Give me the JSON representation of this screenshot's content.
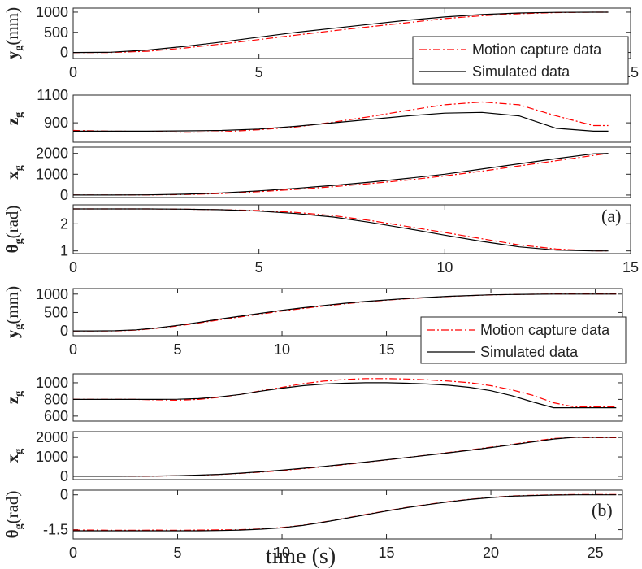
{
  "chart_data": [
    {
      "type": "line",
      "ylabel": {
        "symbol": "y",
        "subscript": "g",
        "unit": "(mm)"
      },
      "x": [
        0,
        1,
        2,
        3,
        4,
        5,
        6,
        7,
        8,
        9,
        10,
        11,
        12,
        13,
        14,
        14.4
      ],
      "xlim": [
        0,
        15
      ],
      "xticks": [
        0,
        5,
        10,
        15
      ],
      "ylim": [
        -150,
        1100
      ],
      "yticks": [
        0,
        500,
        1000
      ],
      "legend": "lower right",
      "series": [
        {
          "name": "Motion capture data",
          "color": "#ff0000",
          "style": "dashdot",
          "values": [
            0,
            0,
            30,
            110,
            210,
            320,
            430,
            540,
            640,
            740,
            840,
            910,
            960,
            990,
            1000,
            1000
          ]
        },
        {
          "name": "Simulated data",
          "color": "#000000",
          "style": "solid",
          "values": [
            0,
            5,
            60,
            150,
            260,
            380,
            500,
            600,
            700,
            800,
            880,
            940,
            980,
            995,
            1000,
            1000
          ]
        }
      ]
    },
    {
      "type": "line",
      "ylabel": {
        "symbol": "z",
        "subscript": "g"
      },
      "x": [
        0,
        1,
        2,
        3,
        4,
        5,
        6,
        7,
        8,
        9,
        10,
        11,
        12,
        13,
        14,
        14.4
      ],
      "xlim": [
        0,
        15
      ],
      "ylim": [
        760,
        1100
      ],
      "yticks": [
        900,
        1100
      ],
      "series": [
        {
          "color": "#ff0000",
          "style": "dashdot",
          "values": [
            845,
            840,
            838,
            832,
            835,
            850,
            870,
            905,
            945,
            990,
            1030,
            1050,
            1030,
            950,
            880,
            880
          ]
        },
        {
          "color": "#000000",
          "style": "solid",
          "values": [
            840,
            840,
            840,
            842,
            845,
            855,
            875,
            900,
            925,
            950,
            970,
            975,
            950,
            860,
            840,
            840
          ]
        }
      ]
    },
    {
      "type": "line",
      "ylabel": {
        "symbol": "x",
        "subscript": "g"
      },
      "x": [
        0,
        1,
        2,
        3,
        4,
        5,
        6,
        7,
        8,
        9,
        10,
        11,
        12,
        13,
        14,
        14.4
      ],
      "xlim": [
        0,
        15
      ],
      "ylim": [
        -120,
        2300
      ],
      "yticks": [
        0,
        1000,
        2000
      ],
      "series": [
        {
          "color": "#ff0000",
          "style": "dashdot",
          "values": [
            0,
            0,
            5,
            25,
            70,
            160,
            270,
            400,
            550,
            720,
            920,
            1150,
            1400,
            1650,
            1900,
            2000
          ]
        },
        {
          "color": "#000000",
          "style": "solid",
          "values": [
            0,
            2,
            10,
            40,
            100,
            200,
            320,
            460,
            620,
            800,
            1000,
            1250,
            1500,
            1750,
            1980,
            2000
          ]
        }
      ]
    },
    {
      "type": "line",
      "ylabel": {
        "symbol": "θ",
        "subscript": "g",
        "unit": "(rad)"
      },
      "annotation": "(a)",
      "x": [
        0,
        1,
        2,
        3,
        4,
        5,
        6,
        7,
        8,
        9,
        10,
        11,
        12,
        13,
        14,
        14.4
      ],
      "xlim": [
        0,
        15
      ],
      "xticks": [
        0,
        5,
        10,
        15
      ],
      "ylim": [
        0.9,
        2.7
      ],
      "yticks": [
        1,
        2
      ],
      "series": [
        {
          "color": "#ff0000",
          "style": "dashdot",
          "values": [
            2.55,
            2.55,
            2.55,
            2.54,
            2.52,
            2.49,
            2.42,
            2.3,
            2.12,
            1.9,
            1.68,
            1.45,
            1.22,
            1.07,
            1.0,
            1.0
          ]
        },
        {
          "color": "#000000",
          "style": "solid",
          "values": [
            2.55,
            2.55,
            2.55,
            2.54,
            2.52,
            2.47,
            2.38,
            2.25,
            2.05,
            1.82,
            1.58,
            1.35,
            1.15,
            1.03,
            1.0,
            1.0
          ]
        }
      ]
    },
    {
      "type": "line",
      "ylabel": {
        "symbol": "y",
        "subscript": "g",
        "unit": "(mm)"
      },
      "x": [
        0,
        1,
        2,
        3,
        4,
        5,
        6,
        7,
        8,
        9,
        10,
        11,
        12,
        13,
        14,
        15,
        16,
        17,
        18,
        19,
        20,
        21,
        22,
        23,
        24,
        25,
        26
      ],
      "xlim": [
        0,
        26.3
      ],
      "xticks": [
        0,
        5,
        10,
        15,
        20,
        25
      ],
      "ylim": [
        -130,
        1150
      ],
      "yticks": [
        0,
        500,
        1000
      ],
      "legend": "lower right",
      "series": [
        {
          "name": "Motion capture data",
          "color": "#ff0000",
          "style": "dashdot",
          "values": [
            0,
            0,
            0,
            20,
            70,
            135,
            215,
            300,
            380,
            460,
            540,
            610,
            675,
            735,
            790,
            835,
            875,
            905,
            935,
            958,
            978,
            990,
            996,
            1005,
            1005,
            1005,
            1005
          ]
        },
        {
          "name": "Simulated data",
          "color": "#000000",
          "style": "solid",
          "values": [
            0,
            0,
            5,
            30,
            80,
            150,
            230,
            320,
            400,
            480,
            560,
            630,
            690,
            750,
            800,
            840,
            880,
            910,
            940,
            960,
            980,
            990,
            995,
            1000,
            1000,
            1000,
            1000
          ]
        }
      ]
    },
    {
      "type": "line",
      "ylabel": {
        "symbol": "z",
        "subscript": "g"
      },
      "x": [
        0,
        1,
        2,
        3,
        4,
        5,
        6,
        7,
        8,
        9,
        10,
        11,
        12,
        13,
        14,
        15,
        16,
        17,
        18,
        19,
        20,
        21,
        22,
        23,
        24,
        25,
        26
      ],
      "xlim": [
        0,
        26.3
      ],
      "ylim": [
        540,
        1107
      ],
      "yticks": [
        600,
        800,
        1000
      ],
      "series": [
        {
          "color": "#ff0000",
          "style": "dashdot",
          "values": [
            800,
            800,
            800,
            800,
            795,
            790,
            800,
            825,
            860,
            905,
            945,
            990,
            1020,
            1040,
            1050,
            1050,
            1045,
            1035,
            1020,
            1000,
            965,
            915,
            850,
            760,
            710,
            710,
            710
          ]
        },
        {
          "color": "#000000",
          "style": "solid",
          "values": [
            800,
            800,
            800,
            800,
            800,
            802,
            810,
            830,
            860,
            900,
            935,
            965,
            985,
            995,
            1000,
            1000,
            995,
            985,
            970,
            945,
            905,
            845,
            770,
            700,
            700,
            700,
            700
          ]
        }
      ]
    },
    {
      "type": "line",
      "ylabel": {
        "symbol": "x",
        "subscript": "g"
      },
      "x": [
        0,
        1,
        2,
        3,
        4,
        5,
        6,
        7,
        8,
        9,
        10,
        11,
        12,
        13,
        14,
        15,
        16,
        17,
        18,
        19,
        20,
        21,
        22,
        23,
        24,
        25,
        26
      ],
      "xlim": [
        0,
        26.3
      ],
      "ylim": [
        -170,
        2300
      ],
      "yticks": [
        0,
        1000,
        2000
      ],
      "series": [
        {
          "color": "#ff0000",
          "style": "dashdot",
          "values": [
            0,
            0,
            0,
            0,
            10,
            25,
            50,
            90,
            150,
            215,
            300,
            390,
            490,
            600,
            720,
            845,
            970,
            1100,
            1230,
            1360,
            1500,
            1640,
            1800,
            1950,
            2000,
            1990,
            1990
          ]
        },
        {
          "color": "#000000",
          "style": "solid",
          "values": [
            0,
            0,
            0,
            5,
            15,
            30,
            60,
            100,
            160,
            230,
            320,
            410,
            510,
            620,
            730,
            850,
            970,
            1090,
            1210,
            1340,
            1480,
            1620,
            1770,
            1920,
            2010,
            2010,
            2010
          ]
        }
      ]
    },
    {
      "type": "line",
      "ylabel": {
        "symbol": "θ",
        "subscript": "g",
        "unit": "(rad)"
      },
      "annotation": "(b)",
      "xlabel": "time (s)",
      "x": [
        0,
        1,
        2,
        3,
        4,
        5,
        6,
        7,
        8,
        9,
        10,
        11,
        12,
        13,
        14,
        15,
        16,
        17,
        18,
        19,
        20,
        21,
        22,
        23,
        24,
        25,
        26
      ],
      "xlim": [
        0,
        26.3
      ],
      "xticks": [
        0,
        5,
        10,
        15,
        20,
        25
      ],
      "ylim": [
        -1.9,
        0.2
      ],
      "yticks": [
        -1.5,
        0
      ],
      "series": [
        {
          "color": "#ff0000",
          "style": "dashdot",
          "values": [
            -1.52,
            -1.52,
            -1.53,
            -1.53,
            -1.52,
            -1.53,
            -1.52,
            -1.51,
            -1.5,
            -1.47,
            -1.41,
            -1.31,
            -1.17,
            -1.01,
            -0.85,
            -0.69,
            -0.54,
            -0.41,
            -0.29,
            -0.19,
            -0.11,
            -0.05,
            -0.02,
            0,
            0.01,
            0.01,
            0.01
          ]
        },
        {
          "color": "#000000",
          "style": "solid",
          "values": [
            -1.55,
            -1.55,
            -1.55,
            -1.55,
            -1.55,
            -1.55,
            -1.55,
            -1.54,
            -1.52,
            -1.48,
            -1.42,
            -1.32,
            -1.18,
            -1.02,
            -0.86,
            -0.7,
            -0.55,
            -0.42,
            -0.3,
            -0.2,
            -0.12,
            -0.06,
            -0.03,
            -0.01,
            0,
            0,
            0
          ]
        }
      ]
    }
  ]
}
